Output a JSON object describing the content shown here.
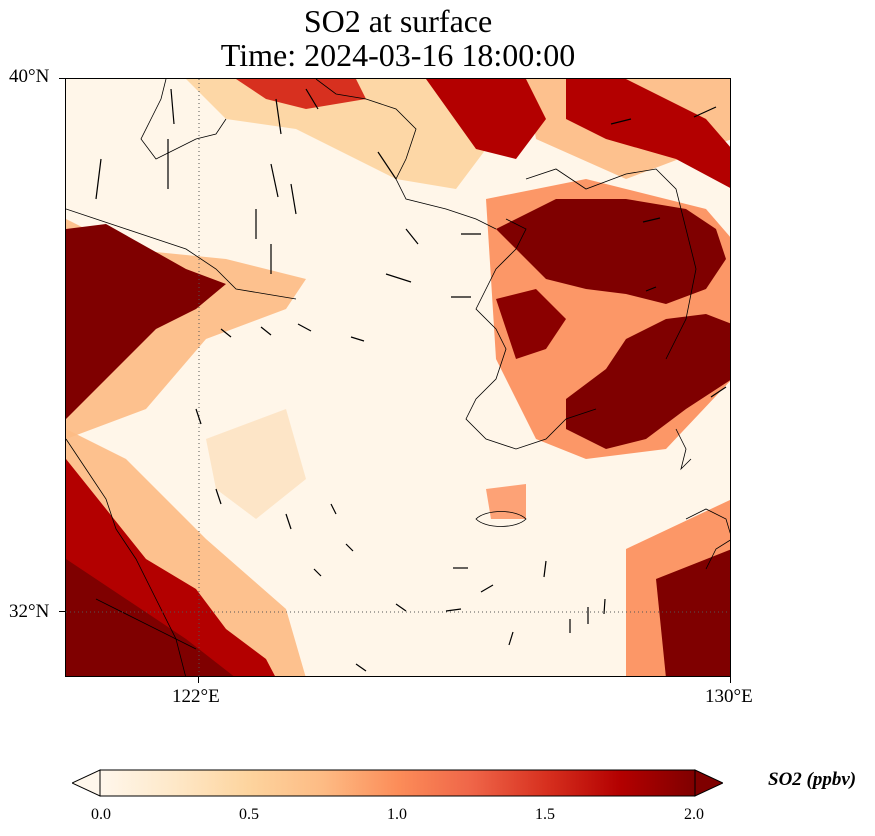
{
  "title": {
    "line1": "SO2 at surface",
    "line2": "Time: 2024-03-16 18:00:00"
  },
  "map": {
    "lat_labels": [
      "40°N",
      "32°N"
    ],
    "lon_labels": [
      "122°E",
      "130°E"
    ],
    "extent": {
      "lon_min": 120,
      "lon_max": 130,
      "lat_min": 31,
      "lat_max": 40
    },
    "gridlines": {
      "style": "dotted",
      "lons": [
        122,
        130
      ],
      "lats": [
        32,
        40
      ]
    },
    "coastline_color": "#000000",
    "wind_vector_color": "#000000"
  },
  "colorbar": {
    "label": "SO2 (ppbv)",
    "ticks": [
      "0.0",
      "0.5",
      "1.0",
      "1.5",
      "2.0"
    ],
    "range": [
      0.0,
      2.0
    ],
    "extend": "both",
    "colormap": "OrRd",
    "colors": [
      "#fff7ec",
      "#fee8c8",
      "#fdd49e",
      "#fdbb84",
      "#fc8d59",
      "#ef6548",
      "#d7301f",
      "#b30000",
      "#7f0000"
    ]
  }
}
